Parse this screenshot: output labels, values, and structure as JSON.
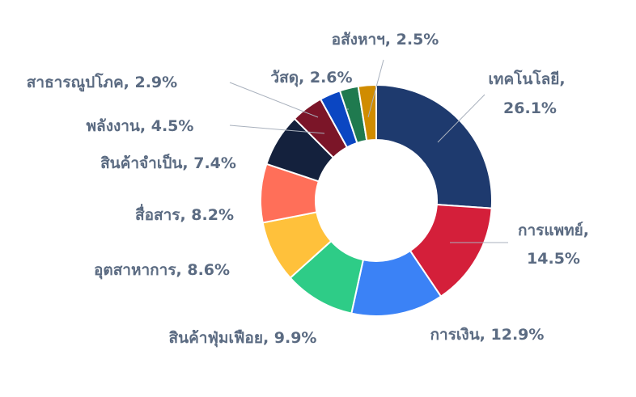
{
  "chart_data": {
    "type": "pie",
    "donut": true,
    "title": "",
    "categories": [
      "เทคโนโลยี",
      "การแพทย์",
      "การเงิน",
      "สินค้าฟุ่มเฟือย",
      "อุตสาหาการ",
      "สื่อสาร",
      "สินค้าจำเป็น",
      "พลังงาน",
      "สาธารณูปโภค",
      "วัสดุ",
      "อสังหาฯ"
    ],
    "values": [
      26.1,
      14.5,
      12.9,
      9.9,
      8.6,
      8.2,
      7.4,
      4.5,
      2.9,
      2.6,
      2.5
    ],
    "labels": [
      "เทคโนโลยี, 26.1%",
      "การแพทย์, 14.5%",
      "การเงิน, 12.9%",
      "สินค้าฟุ่มเฟือย, 9.9%",
      "อุตสาหาการ, 8.6%",
      "สื่อสาร, 8.2%",
      "สินค้าจำเป็น, 7.4%",
      "พลังงาน, 4.5%",
      "สาธารณูปโภค, 2.9%",
      "วัสดุ, 2.6%",
      "อสังหาฯ, 2.5%"
    ],
    "colors": [
      "#1e3a6e",
      "#d41f3a",
      "#3b82f6",
      "#2ecc87",
      "#ffc13b",
      "#ff6f59",
      "#14213d",
      "#7b1528",
      "#0b46c2",
      "#1f7a4f",
      "#d08c00"
    ],
    "label_color": "#5b6b82",
    "legend": "none"
  }
}
